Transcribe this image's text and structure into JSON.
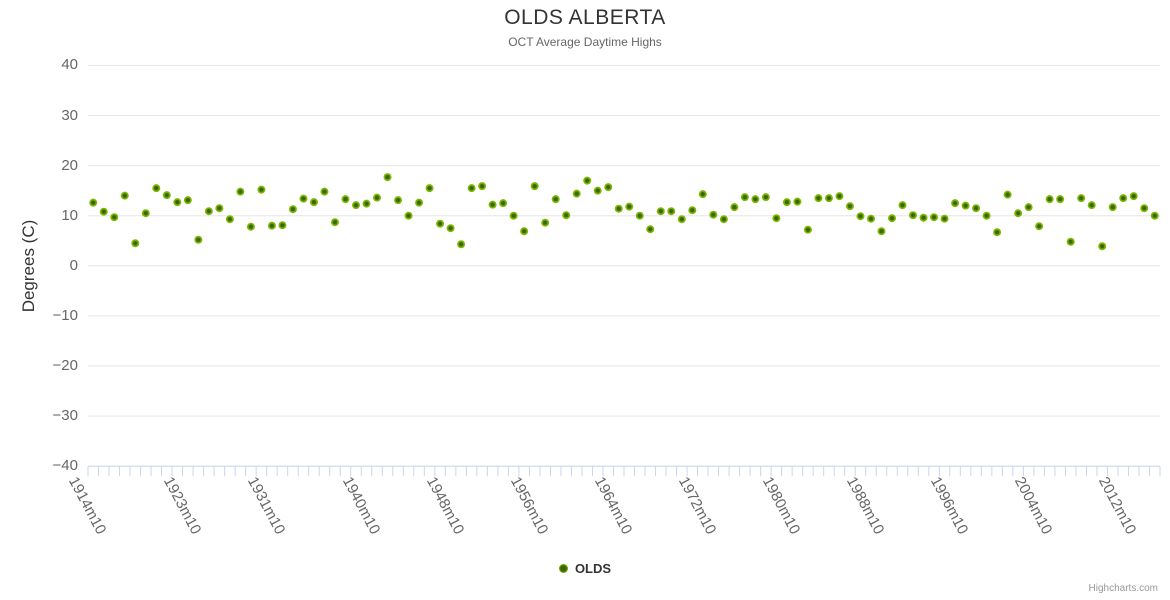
{
  "credits": "Highcharts.com",
  "chart_data": {
    "type": "scatter",
    "title": "OLDS ALBERTA",
    "subtitle": "OCT Average Daytime Highs",
    "xlabel": "",
    "ylabel": "Degrees (C)",
    "ylim": [
      -40,
      40
    ],
    "y_ticks": [
      40,
      30,
      20,
      10,
      0,
      -10,
      -20,
      -30,
      -40
    ],
    "grid": "horizontal-only",
    "legend_position": "bottom-center",
    "axis_line_color": "#ccd6eb",
    "grid_color": "#e6e6e6",
    "start_year": 1914,
    "end_year": 2015,
    "category_suffix": "m10",
    "x_tick_labels_shown": [
      "1914m10",
      "1923m10",
      "1931m10",
      "1940m10",
      "1948m10",
      "1956m10",
      "1964m10",
      "1972m10",
      "1980m10",
      "1988m10",
      "1996m10",
      "2004m10",
      "2012m10"
    ],
    "series": [
      {
        "name": "OLDS",
        "color": "#7CB500",
        "marker_center_color": "#3A6600",
        "marker_edge_color": "#7FBA0B",
        "values": [
          12.6,
          10.8,
          9.7,
          14.0,
          4.5,
          10.5,
          15.5,
          14.1,
          12.7,
          13.1,
          5.2,
          10.9,
          11.5,
          9.3,
          14.8,
          7.8,
          15.2,
          8.0,
          8.1,
          11.3,
          13.4,
          12.7,
          14.8,
          8.7,
          13.3,
          12.1,
          12.4,
          13.6,
          17.7,
          13.1,
          10.0,
          12.6,
          15.5,
          8.4,
          7.5,
          4.3,
          15.5,
          15.9,
          12.2,
          12.5,
          10.0,
          6.9,
          15.9,
          8.6,
          13.3,
          10.1,
          14.4,
          17.0,
          15.0,
          15.7,
          11.4,
          11.8,
          10.0,
          7.3,
          10.9,
          10.9,
          9.3,
          11.1,
          14.3,
          10.2,
          9.3,
          11.7,
          13.7,
          13.3,
          13.7,
          9.5,
          12.7,
          12.8,
          7.2,
          13.5,
          13.5,
          13.9,
          11.9,
          9.9,
          9.4,
          6.9,
          9.5,
          12.1,
          10.1,
          9.6,
          9.7,
          9.4,
          12.5,
          12.0,
          11.5,
          10.0,
          6.7,
          14.2,
          10.5,
          11.7,
          7.9,
          13.3,
          13.3,
          4.8,
          13.5,
          12.1,
          3.9,
          11.7,
          13.5,
          13.9,
          11.5,
          10.0
        ]
      }
    ]
  }
}
